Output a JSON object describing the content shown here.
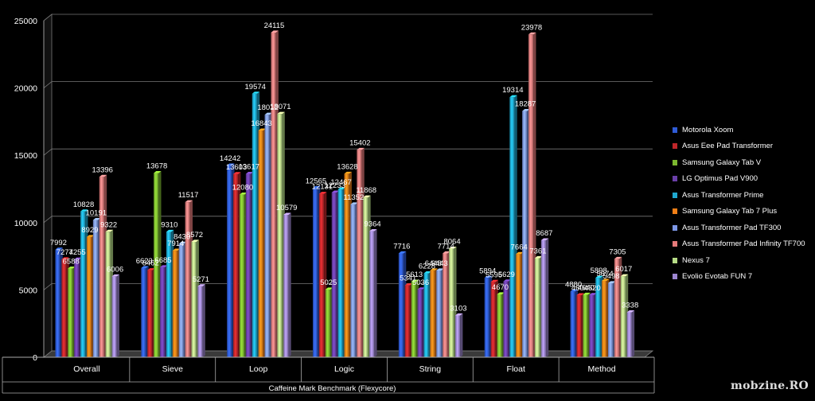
{
  "chart_data": {
    "type": "bar",
    "title": "",
    "xlabel": "Caffeine Mark Benchmark (Flexycore)",
    "ylabel": "",
    "ylim": [
      0,
      25000
    ],
    "yticks": [
      "0",
      "5000",
      "10000",
      "15000",
      "20000",
      "25000"
    ],
    "grid": true,
    "legend": "right",
    "categories": [
      "Overall",
      "Sieve",
      "Loop",
      "Logic",
      "String",
      "Float",
      "Method"
    ],
    "series": [
      {
        "name": "Motorola Xoom",
        "color": "#2f5bd6",
        "values": [
          7992,
          6623,
          14242,
          12565,
          7716,
          5894,
          4880
        ]
      },
      {
        "name": "Asus Eee Pad Transformer",
        "color": "#c0262a",
        "values": [
          7274,
          6462,
          13603,
          12131,
          5341,
          5595,
          4604
        ]
      },
      {
        "name": "Samsung Galaxy Tab V",
        "color": "#7cb82f",
        "values": [
          6588,
          13678,
          12080,
          5025,
          5613,
          4670,
          4640
        ]
      },
      {
        "name": "LG Optimus Pad V900",
        "color": "#6a3fa8",
        "values": [
          7255,
          6685,
          13617,
          12233,
          5036,
          5629,
          4620
        ]
      },
      {
        "name": "Asus Transformer Prime",
        "color": "#1fa8cf",
        "values": [
          10828,
          9310,
          19574,
          12467,
          6228,
          19314,
          5898
        ]
      },
      {
        "name": "Samsung Galaxy Tab 7 Plus",
        "color": "#f07f16",
        "values": [
          8929,
          7914,
          16843,
          13628,
          6448,
          7664,
          5674
        ]
      },
      {
        "name": "Asus Transformer Pad TF300",
        "color": "#7d97e6",
        "values": [
          10191,
          8430,
          18012,
          11352,
          6443,
          18287,
          5498
        ]
      },
      {
        "name": "Asus Transformer Pad Infinity TF700",
        "color": "#e57a7a",
        "values": [
          13396,
          11517,
          24115,
          15402,
          7714,
          23978,
          7305
        ]
      },
      {
        "name": "Nexus 7",
        "color": "#b6dc86",
        "values": [
          9322,
          8572,
          18071,
          11868,
          8064,
          7361,
          6017
        ]
      },
      {
        "name": "Evolio Evotab FUN 7",
        "color": "#9d86d0",
        "values": [
          6006,
          5271,
          10579,
          9364,
          3103,
          8687,
          3338
        ]
      }
    ]
  },
  "watermark": "mobzine.RO"
}
